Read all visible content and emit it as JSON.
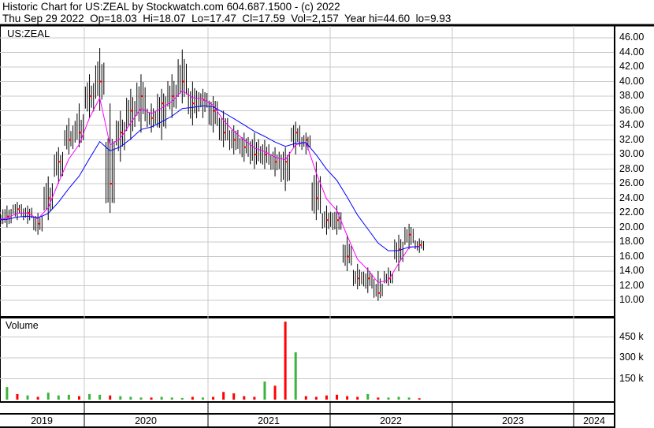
{
  "header": {
    "line1": "Historic Chart for US:ZEAL by Stockwatch.com 604.687.1500 - (c) 2022",
    "line2": "Thu Sep 29 2022  Op=18.03  Hi=18.07  Lo=17.47  Cl=17.59  Vol=2,157  Year hi=44.60  lo=9.93"
  },
  "chart_data": [
    {
      "type": "ohlc",
      "title": "US:ZEAL",
      "ylim": [
        9,
        47
      ],
      "yticks": [
        10,
        12,
        14,
        16,
        18,
        20,
        22,
        24,
        26,
        28,
        30,
        32,
        34,
        36,
        38,
        40,
        42,
        44,
        46
      ],
      "ytick_labels": [
        "10.00",
        "12.00",
        "14.00",
        "16.00",
        "18.00",
        "20.00",
        "22.00",
        "24.00",
        "26.00",
        "28.00",
        "30.00",
        "32.00",
        "34.00",
        "36.00",
        "38.00",
        "40.00",
        "42.00",
        "44.00",
        "46.00"
      ],
      "x_labels": [
        "2019",
        "2020",
        "2021",
        "2022",
        "2023",
        "2024"
      ],
      "grid": true,
      "colors": {
        "bars": "#000000",
        "close_tick": "#ff0000",
        "ma_short": "#ff00ff",
        "ma_long": "#0000ff",
        "grid": "#c8c8c8"
      },
      "months": [
        "2019-04",
        "2019-05",
        "2019-06",
        "2019-07",
        "2019-08",
        "2019-09",
        "2019-10",
        "2019-11",
        "2019-12",
        "2020-01",
        "2020-02",
        "2020-03",
        "2020-04",
        "2020-05",
        "2020-06",
        "2020-07",
        "2020-08",
        "2020-09",
        "2020-10",
        "2020-11",
        "2020-12",
        "2021-01",
        "2021-02",
        "2021-03",
        "2021-04",
        "2021-05",
        "2021-06",
        "2021-07",
        "2021-08",
        "2021-09",
        "2021-10",
        "2021-11",
        "2021-12",
        "2022-01",
        "2022-02",
        "2022-03",
        "2022-04",
        "2022-05",
        "2022-06",
        "2022-07",
        "2022-08",
        "2022-09"
      ],
      "close": [
        21,
        21.5,
        22.5,
        22,
        20.5,
        24,
        29,
        32,
        33,
        38,
        40,
        26,
        33,
        36,
        38,
        35,
        37,
        38,
        40,
        37,
        37.5,
        36,
        33,
        32,
        31,
        30,
        30,
        29,
        29,
        33,
        32,
        24,
        21,
        21,
        16,
        13,
        13,
        11,
        13,
        17,
        19,
        17.59
      ],
      "high": [
        22,
        23,
        23.5,
        23,
        22,
        27,
        31,
        35,
        37,
        41,
        44.6,
        37,
        36,
        39,
        41,
        37,
        39,
        41,
        44.4,
        40,
        39,
        38,
        36,
        34,
        33,
        33,
        32,
        31,
        31,
        34.5,
        33,
        29,
        23,
        23,
        19,
        15,
        14.5,
        14,
        14.5,
        19,
        20.5,
        18.5
      ],
      "low": [
        20,
        20,
        21,
        20.5,
        19,
        21,
        26,
        30,
        31,
        35,
        36,
        22,
        29,
        32,
        33,
        33,
        32,
        35,
        37,
        34,
        35,
        33,
        31,
        30,
        29,
        28,
        28,
        27,
        25,
        30,
        30,
        21,
        19,
        19,
        14,
        11.5,
        11,
        9.93,
        12,
        14,
        17,
        16.5
      ]
    },
    {
      "type": "bar",
      "title": "Volume",
      "yticks": [
        150000,
        300000,
        450000
      ],
      "ytick_labels": [
        "150 k",
        "300 k",
        "450 k"
      ],
      "colors": {
        "up": "#3cb43c",
        "down": "#ff0000"
      },
      "months": [
        "2019-04",
        "2019-05",
        "2019-06",
        "2019-07",
        "2019-08",
        "2019-09",
        "2019-10",
        "2019-11",
        "2019-12",
        "2020-01",
        "2020-02",
        "2020-03",
        "2020-04",
        "2020-05",
        "2020-06",
        "2020-07",
        "2020-08",
        "2020-09",
        "2020-10",
        "2020-11",
        "2020-12",
        "2021-01",
        "2021-02",
        "2021-03",
        "2021-04",
        "2021-05",
        "2021-06",
        "2021-07",
        "2021-08",
        "2021-09",
        "2021-10",
        "2021-11",
        "2021-12",
        "2022-01",
        "2022-02",
        "2022-03",
        "2022-04",
        "2022-05",
        "2022-06",
        "2022-07",
        "2022-08",
        "2022-09"
      ],
      "values": [
        60000,
        90000,
        40000,
        30000,
        20000,
        50000,
        30000,
        35000,
        25000,
        40000,
        35000,
        30000,
        25000,
        20000,
        15000,
        15000,
        20000,
        15000,
        12000,
        20000,
        15000,
        20000,
        55000,
        45000,
        25000,
        20000,
        130000,
        100000,
        560000,
        340000,
        25000,
        20000,
        30000,
        35000,
        25000,
        20000,
        40000,
        15000,
        15000,
        20000,
        15000,
        10000
      ],
      "up": [
        true,
        true,
        false,
        true,
        false,
        true,
        true,
        true,
        false,
        true,
        true,
        false,
        true,
        true,
        true,
        false,
        true,
        true,
        true,
        false,
        true,
        false,
        false,
        false,
        false,
        false,
        true,
        false,
        false,
        true,
        false,
        false,
        false,
        false,
        false,
        false,
        true,
        false,
        true,
        true,
        true,
        false
      ]
    }
  ]
}
